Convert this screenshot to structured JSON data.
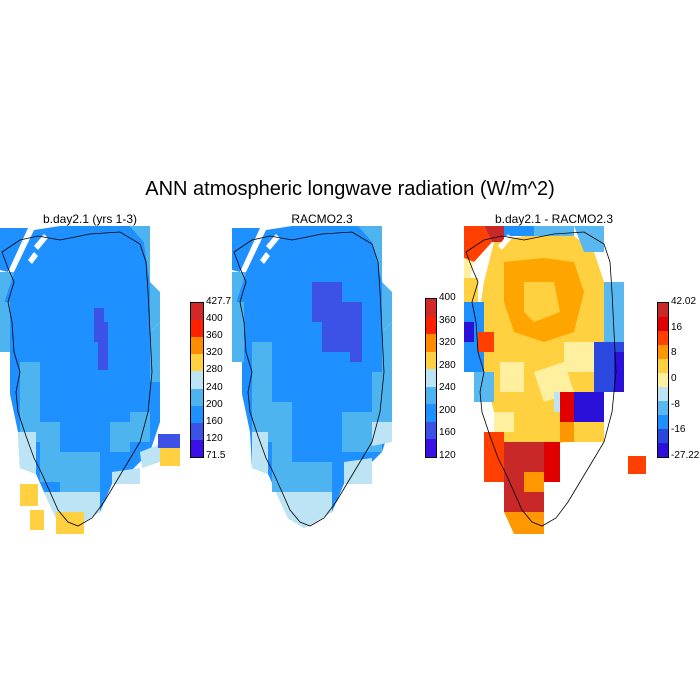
{
  "title": "ANN atmospheric longwave radiation (W/m^2)",
  "panels": [
    {
      "title": "b.day2.1 (yrs 1-3)",
      "colorbar": {
        "colors": [
          "#3a10e6",
          "#3c52e6",
          "#1e90ff",
          "#4db4f0",
          "#bde4f5",
          "#ffd040",
          "#ff8c00",
          "#ff2000",
          "#d22828"
        ],
        "labels": [
          "427.7",
          "400",
          "360",
          "320",
          "280",
          "240",
          "200",
          "160",
          "120",
          "71.5"
        ]
      }
    },
    {
      "title": "RACMO2.3",
      "colorbar": {
        "colors": [
          "#3a10e6",
          "#3c52e6",
          "#1e90ff",
          "#4db4f0",
          "#bde4f5",
          "#ffd040",
          "#ff8c00",
          "#ff2000",
          "#d22828"
        ],
        "labels": [
          "400",
          "360",
          "320",
          "280",
          "240",
          "200",
          "160",
          "120"
        ]
      }
    },
    {
      "title": "b.day2.1 - RACMO2.3",
      "colorbar": {
        "colors": [
          "#2a10d8",
          "#2a48e0",
          "#1e90ff",
          "#5ab8f0",
          "#bde4f5",
          "#fff0a0",
          "#ffd040",
          "#ff9800",
          "#ff4000",
          "#e00000",
          "#c82828"
        ],
        "labels": [
          "42.02",
          "16",
          "8",
          "0",
          "-8",
          "-16",
          "-27.22"
        ]
      }
    }
  ]
}
